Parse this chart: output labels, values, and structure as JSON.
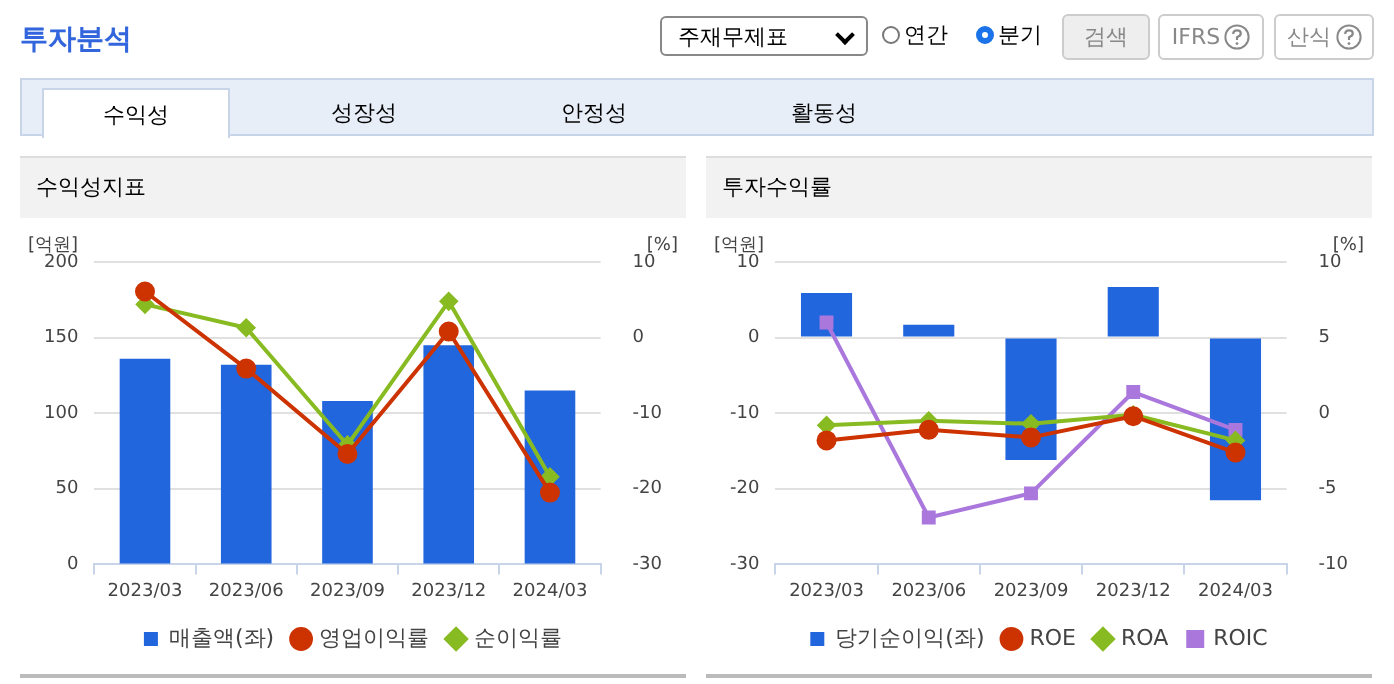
{
  "chart_data": [
    {
      "type": "other",
      "title": "투자분석",
      "annotations": [
        "주재무제표",
        "연간",
        "분기",
        "검색",
        "IFRS",
        "산식",
        "수익성",
        "성장성",
        "안정성",
        "활동성"
      ]
    },
    {
      "type": "bar",
      "title": "수익성지표",
      "ylabel": "[억원]",
      "y2label": "[%]",
      "categories": [
        "2023/03",
        "2023/06",
        "2023/09",
        "2023/12",
        "2024/03"
      ],
      "ylim": [
        0,
        200
      ],
      "yticks": [
        0,
        50,
        100,
        150,
        200
      ],
      "y2lim": [
        -30,
        10
      ],
      "y2ticks": [
        -30,
        -20,
        -10,
        0,
        10
      ],
      "grid": "y",
      "legend": "bottom",
      "series": [
        {
          "name": "매출액(좌)",
          "type": "bar",
          "color": "#2266dd",
          "values": [
            136,
            132,
            108,
            145,
            115
          ]
        },
        {
          "name": "영업이익률",
          "type": "line",
          "axis": "y2",
          "color": "#cc3300",
          "marker": "circle",
          "values": [
            6.1,
            -4.1,
            -15.4,
            0.8,
            -20.5
          ]
        },
        {
          "name": "순이익률",
          "type": "line",
          "axis": "y2",
          "color": "#88bb22",
          "marker": "diamond",
          "values": [
            4.4,
            1.3,
            -14.2,
            4.8,
            -18.4
          ]
        }
      ]
    },
    {
      "type": "bar",
      "title": "투자수익률",
      "ylabel": "[억원]",
      "y2label": "[%]",
      "categories": [
        "2023/03",
        "2023/06",
        "2023/09",
        "2023/12",
        "2024/03"
      ],
      "ylim": [
        -30,
        10
      ],
      "yticks": [
        -30,
        -20,
        -10,
        0,
        10
      ],
      "y2lim": [
        -10,
        10
      ],
      "y2ticks": [
        -10,
        -5,
        0,
        5,
        10
      ],
      "grid": "y",
      "legend": "bottom",
      "series": [
        {
          "name": "당기순이익(좌)",
          "type": "bar",
          "color": "#2266dd",
          "values": [
            5.9,
            1.7,
            -16.2,
            6.7,
            -21.5
          ]
        },
        {
          "name": "ROE",
          "type": "line",
          "axis": "y2",
          "color": "#cc3300",
          "marker": "circle",
          "values": [
            -1.8,
            -1.1,
            -1.6,
            -0.2,
            -2.6
          ]
        },
        {
          "name": "ROA",
          "type": "line",
          "axis": "y2",
          "color": "#88bb22",
          "marker": "diamond",
          "values": [
            -0.8,
            -0.5,
            -0.7,
            -0.1,
            -1.8
          ]
        },
        {
          "name": "ROIC",
          "type": "line",
          "axis": "y2",
          "color": "#aa77dd",
          "marker": "square",
          "values": [
            6.0,
            -6.9,
            -5.3,
            1.4,
            -1.1
          ]
        }
      ]
    }
  ]
}
